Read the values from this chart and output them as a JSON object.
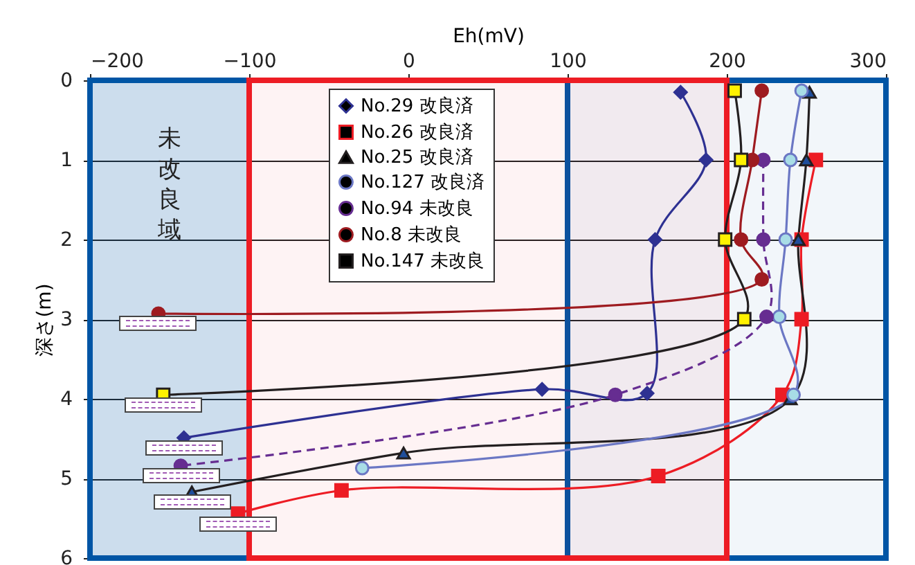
{
  "chart_data": {
    "type": "line",
    "xlabel": "Eh(mV)",
    "ylabel": "深さ(m)",
    "xlim": [
      -200,
      300
    ],
    "xticks": [
      -200,
      -100,
      0,
      100,
      200,
      300
    ],
    "ylim": [
      6,
      0
    ],
    "yticks": [
      0,
      1,
      2,
      3,
      4,
      5,
      6
    ],
    "grid": "y",
    "legend": "top",
    "bands": [
      {
        "axis": "x",
        "from": -200,
        "to": -100,
        "label": "未改良域",
        "color": "#0055a5"
      },
      {
        "axis": "x",
        "from": 100,
        "to": 300,
        "color": "#0055a5"
      },
      {
        "axis": "x",
        "from": -100,
        "to": 200,
        "color": "#ed1c24"
      }
    ],
    "series": [
      {
        "name": "No.29 改良済",
        "color": "#2e3192",
        "colors": [
          "#2e3192",
          "#2e3192",
          "#2e3192",
          "#2e3192",
          "#2e3192",
          "#2e3192"
        ],
        "marker": "diamond",
        "x": [
          171,
          187,
          155,
          150,
          84,
          -141
        ],
        "values": [
          0.15,
          1,
          2,
          3.93,
          3.88,
          4.49
        ]
      },
      {
        "name": "No.26 改良済",
        "color": "#ed1c24",
        "colors": [
          "#ed1c24",
          "#ed1c24",
          "#ed1c24",
          "#ed1c24",
          "#ed1c24",
          "#ed1c24",
          "#ed1c24"
        ],
        "marker": "square",
        "x": [
          256,
          247,
          247,
          235,
          157,
          -42,
          -107
        ],
        "values": [
          1,
          2,
          3,
          3.95,
          4.97,
          5.15,
          5.44
        ]
      },
      {
        "name": "No.25 改良済",
        "color": "#231f20",
        "colors": [
          "#1f4e9c",
          "#1f4e9c",
          "#1f4e9c",
          "#1f4e9c",
          "#1f4e9c",
          "#1f4e9c"
        ],
        "marker": "triangle",
        "x": [
          252,
          250,
          245,
          240,
          -3,
          -136
        ],
        "values": [
          0.15,
          1,
          2,
          4,
          4.68,
          5.17
        ]
      },
      {
        "name": "No.127 改良済",
        "color": "#6b77c4",
        "colors": [
          "#a8dde6",
          "#a8dde6",
          "#a8dde6",
          "#a8dde6",
          "#a8dde6",
          "#a8dde6"
        ],
        "marker": "circle",
        "x": [
          247,
          240,
          237,
          233,
          242,
          -29
        ],
        "values": [
          0.13,
          1,
          2,
          2.97,
          3.95,
          4.87
        ]
      },
      {
        "name": "No.94 未改良",
        "color": "#662d91",
        "colors": [
          "#662d91",
          "#662d91",
          "#662d91",
          "#662d91",
          "#662d91"
        ],
        "marker": "circle",
        "line_style": "dashed",
        "x": [
          223,
          223,
          225,
          130,
          -143
        ],
        "values": [
          1,
          2,
          2.97,
          3.95,
          4.84
        ]
      },
      {
        "name": "No.8 未改良",
        "color": "#9e1b20",
        "colors": [
          "#9e1b20",
          "#9e1b20",
          "#9e1b20",
          "#9e1b20",
          "#9e1b20"
        ],
        "marker": "circle",
        "x": [
          222,
          216,
          209,
          222,
          -157
        ],
        "values": [
          0.13,
          1,
          2,
          2.5,
          2.93
        ]
      },
      {
        "name": "No.147 未改良",
        "color": "#231f20",
        "colors": [
          "#fff200",
          "#fff200",
          "#fff200",
          "#fff200",
          "#fff200"
        ],
        "marker": "square",
        "x": [
          205,
          209,
          199,
          211,
          -154
        ],
        "values": [
          0.13,
          1,
          2,
          3,
          3.95
        ]
      }
    ]
  }
}
